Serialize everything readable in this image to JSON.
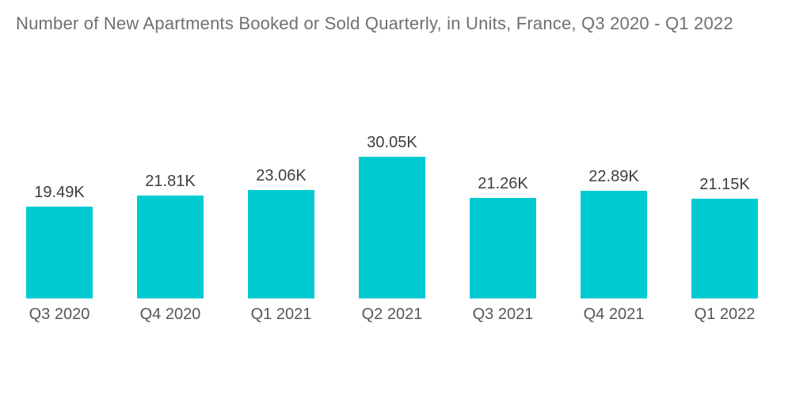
{
  "title": "Number of New Apartments Booked or Sold Quarterly, in Units, France, Q3 2020 - Q1 2022",
  "colors": {
    "background": "#FFFFFF",
    "bar": "#00CBD1",
    "title_text": "#6E6F72",
    "value_label_text": "#3B3E43",
    "category_label_text": "#54575B"
  },
  "chart_data": {
    "type": "bar",
    "title": "Number of New Apartments Booked or Sold Quarterly, in Units, France, Q3 2020 - Q1 2022",
    "categories": [
      "Q3 2020",
      "Q4 2020",
      "Q1 2021",
      "Q2 2021",
      "Q3 2021",
      "Q4 2021",
      "Q1 2022"
    ],
    "values": [
      19490,
      21810,
      23060,
      30050,
      21260,
      22890,
      21150
    ],
    "value_labels": [
      "19.49K",
      "21.81K",
      "23.06K",
      "30.05K",
      "21.26K",
      "22.89K",
      "21.15K"
    ],
    "xlabel": "",
    "ylabel": "",
    "ylim": [
      0,
      30050
    ],
    "grid": false,
    "legend": false,
    "bar_color": "#00CBD1"
  }
}
